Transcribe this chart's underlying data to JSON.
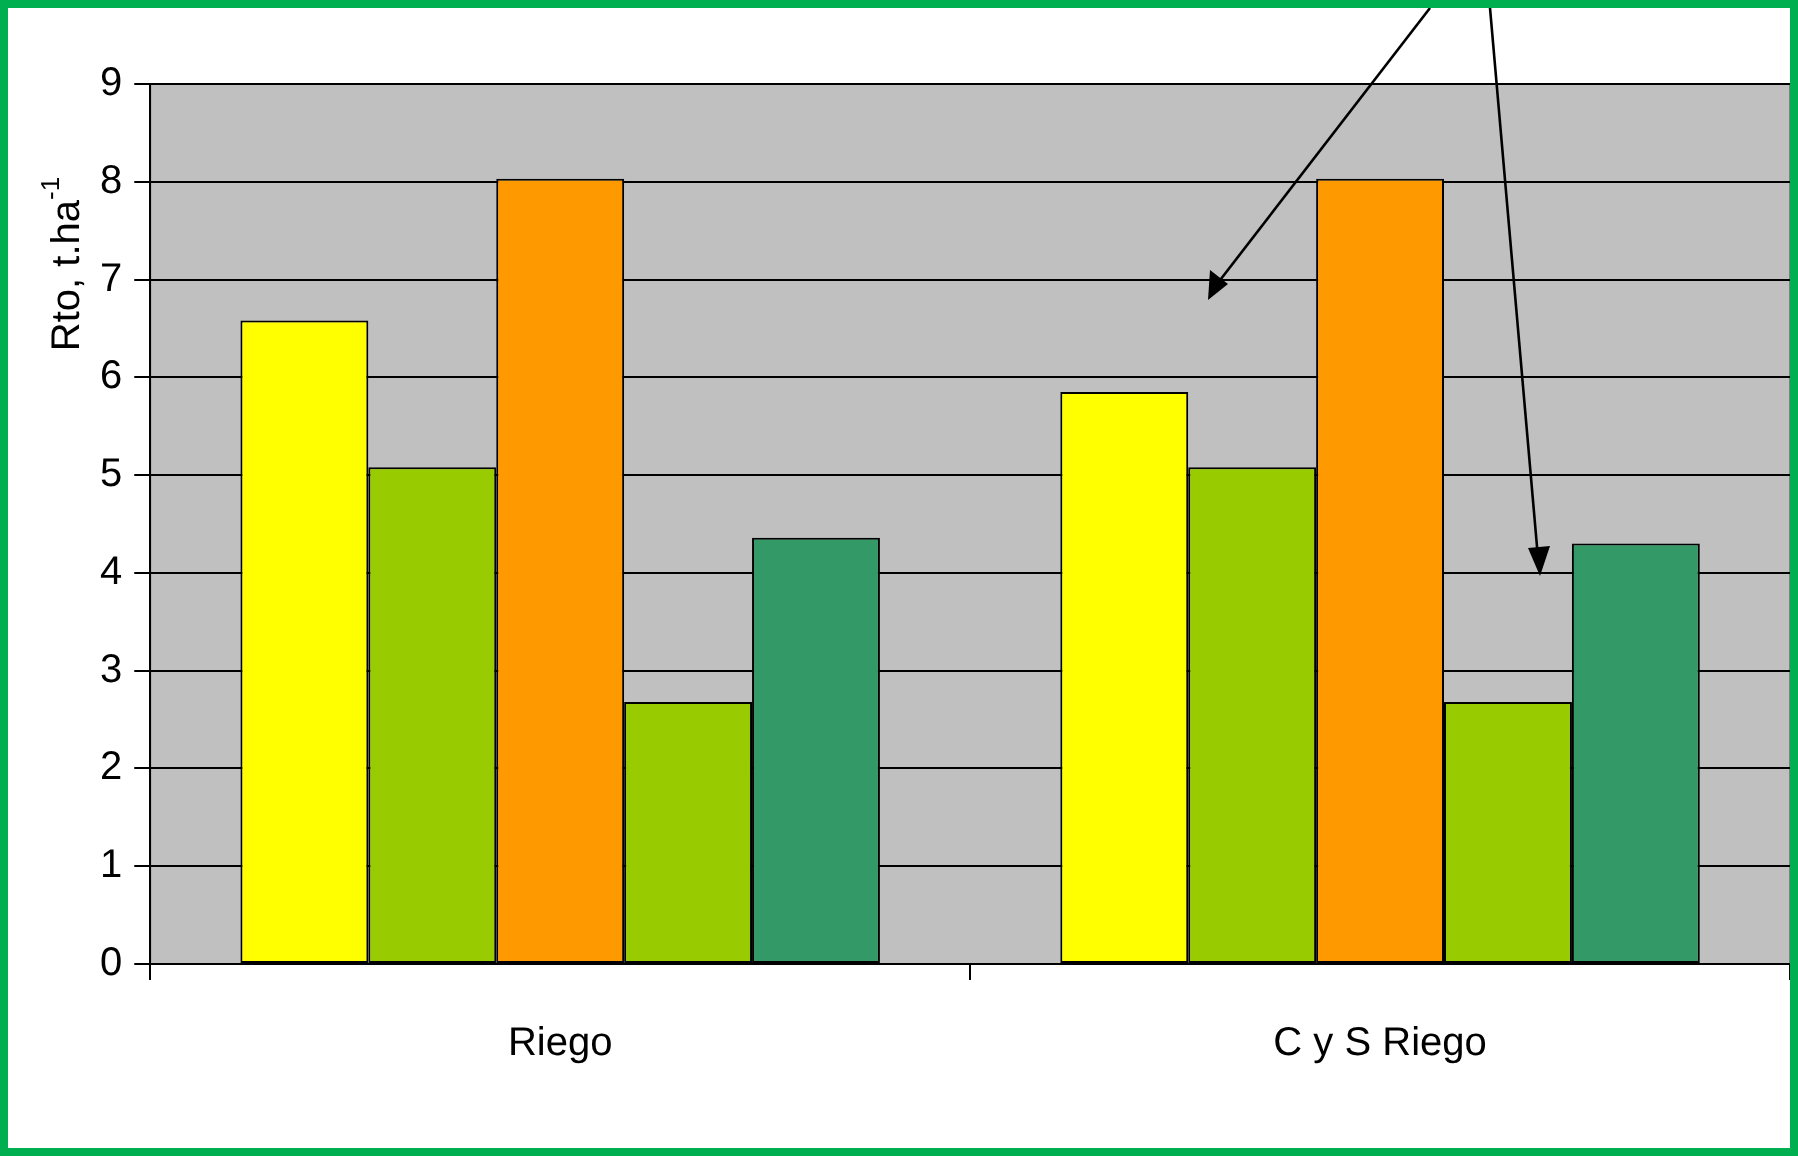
{
  "chart_data": {
    "type": "bar",
    "ylabel": "Rto, t.ha$^{-1}$",
    "categories": [
      "Riego",
      "C y S Riego"
    ],
    "series": [
      {
        "color": "#ffff00",
        "values": [
          6.58,
          5.85
        ]
      },
      {
        "color": "#99cc00",
        "values": [
          5.08,
          5.08
        ]
      },
      {
        "color": "#ff9900",
        "values": [
          8.03,
          8.03
        ]
      },
      {
        "color": "#99cc00",
        "values": [
          2.68,
          2.68
        ]
      },
      {
        "color": "#339966",
        "values": [
          4.36,
          4.3
        ]
      }
    ],
    "ylim": [
      0,
      9
    ],
    "yticks": [
      0,
      1,
      2,
      3,
      4,
      5,
      6,
      7,
      8,
      9
    ],
    "grid": "y"
  }
}
